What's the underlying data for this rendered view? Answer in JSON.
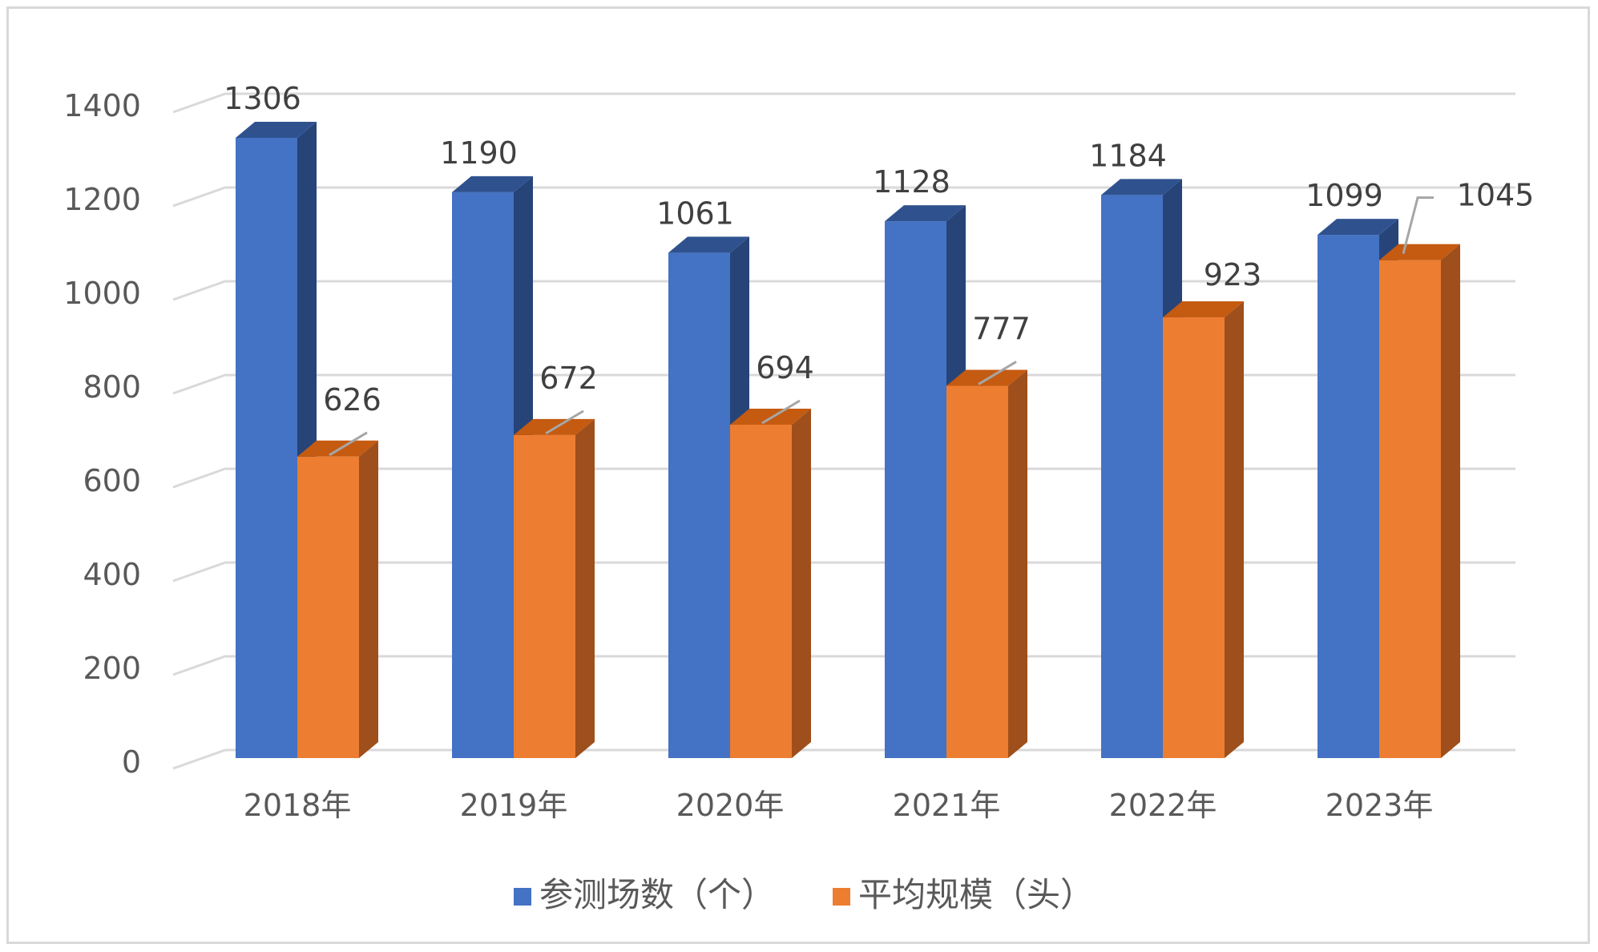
{
  "chart_data": {
    "type": "bar",
    "variant": "3d-clustered-column",
    "categories": [
      "2018年",
      "2019年",
      "2020年",
      "2021年",
      "2022年",
      "2023年"
    ],
    "series": [
      {
        "name": "参测场数（个）",
        "values": [
          1306,
          1190,
          1061,
          1128,
          1184,
          1099
        ],
        "color": "#4472c4",
        "side_color": "#264478",
        "top_color": "#2f528f"
      },
      {
        "name": "平均规模（头）",
        "values": [
          626,
          672,
          694,
          777,
          923,
          1045
        ],
        "color": "#ed7d31",
        "side_color": "#9e4f1b",
        "top_color": "#c55a11"
      }
    ],
    "y_ticks": [
      "0",
      "200",
      "400",
      "600",
      "800",
      "1000",
      "1200",
      "1400"
    ],
    "ylim": [
      0,
      1400
    ],
    "grid": true,
    "legend_position": "bottom",
    "data_labels": true
  }
}
